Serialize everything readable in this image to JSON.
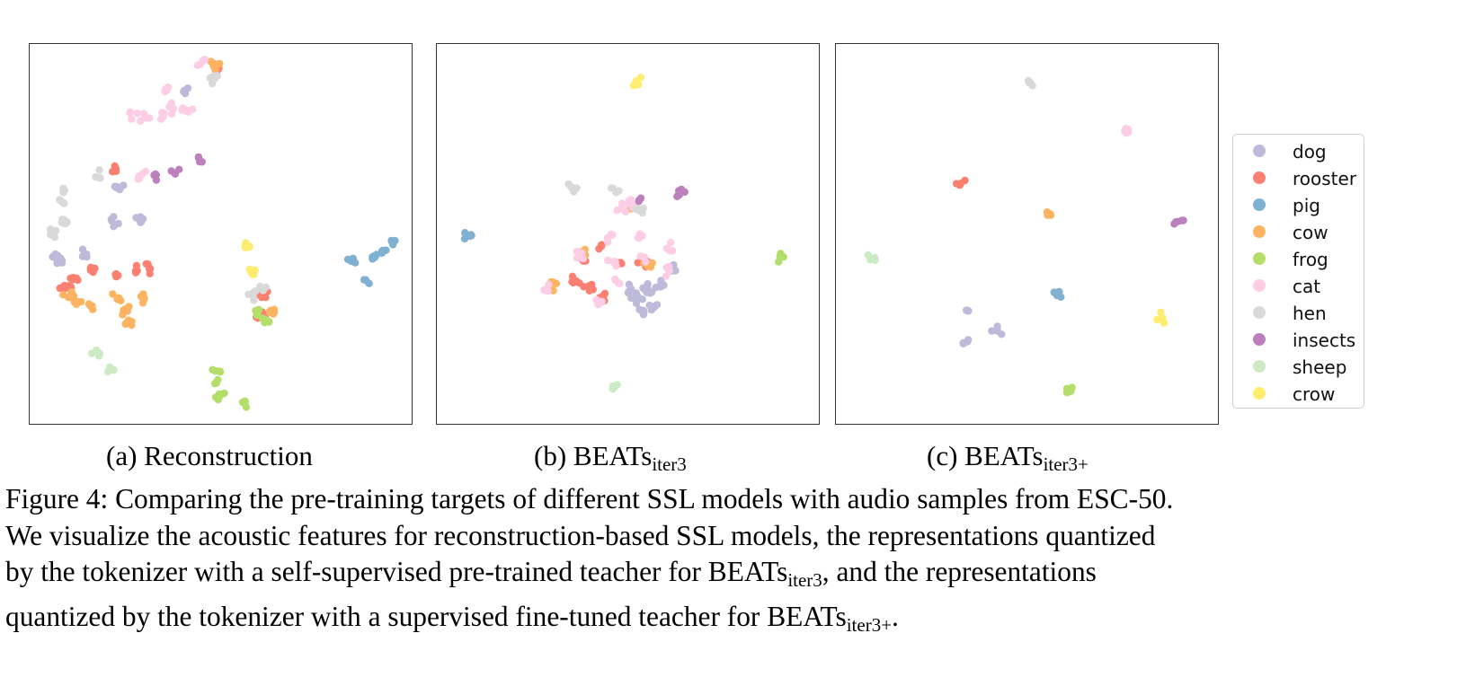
{
  "chart_data": [
    {
      "type": "scatter",
      "caption": {
        "prefix": "(a)",
        "title": "Reconstruction",
        "subscript": ""
      },
      "series": [
        {
          "name": "dog",
          "points": [
            [
              205,
              100
            ],
            [
              130,
              208
            ],
            [
              155,
              243
            ],
            [
              125,
              245
            ],
            [
              95,
              282
            ],
            [
              68,
              290
            ],
            [
              60,
              288
            ]
          ]
        },
        {
          "name": "rooster",
          "points": [
            [
              240,
              75
            ],
            [
              125,
              190
            ],
            [
              165,
              298
            ],
            [
              148,
              300
            ],
            [
              128,
              305
            ],
            [
              100,
              300
            ],
            [
              80,
              308
            ],
            [
              72,
              320
            ],
            [
              295,
              330
            ],
            [
              290,
              350
            ]
          ]
        },
        {
          "name": "pig",
          "points": [
            [
              435,
              268
            ],
            [
              425,
              280
            ],
            [
              415,
              285
            ],
            [
              392,
              290
            ],
            [
              406,
              311
            ]
          ]
        },
        {
          "name": "cow",
          "points": [
            [
              238,
              72
            ],
            [
              130,
              330
            ],
            [
              160,
              333
            ],
            [
              140,
              345
            ],
            [
              140,
              358
            ],
            [
              102,
              340
            ],
            [
              85,
              335
            ],
            [
              75,
              330
            ],
            [
              300,
              345
            ]
          ]
        },
        {
          "name": "frog",
          "points": [
            [
              242,
              412
            ],
            [
              240,
              425
            ],
            [
              245,
              440
            ],
            [
              272,
              447
            ],
            [
              295,
              357
            ],
            [
              285,
              350
            ]
          ]
        },
        {
          "name": "cat",
          "points": [
            [
              223,
              68
            ],
            [
              185,
              100
            ],
            [
              145,
              125
            ],
            [
              160,
              130
            ],
            [
              180,
              125
            ],
            [
              192,
              120
            ],
            [
              207,
              122
            ],
            [
              155,
              193
            ]
          ]
        },
        {
          "name": "hen",
          "points": [
            [
              238,
              88
            ],
            [
              108,
              195
            ],
            [
              70,
              210
            ],
            [
              70,
              225
            ],
            [
              58,
              258
            ],
            [
              70,
              250
            ],
            [
              288,
              320
            ],
            [
              280,
              328
            ]
          ]
        },
        {
          "name": "insects",
          "points": [
            [
              220,
              175
            ],
            [
              195,
              190
            ],
            [
              172,
              193
            ]
          ]
        },
        {
          "name": "sheep",
          "points": [
            [
              105,
              390
            ],
            [
              125,
              410
            ]
          ]
        },
        {
          "name": "crow",
          "points": [
            [
              272,
              275
            ],
            [
              280,
              303
            ]
          ]
        }
      ]
    },
    {
      "type": "scatter",
      "caption": {
        "prefix": "(b)",
        "title": "BEATs",
        "subscript": "iter3"
      },
      "series": [
        {
          "name": "dog",
          "points": [
            [
              720,
              320
            ],
            [
              735,
              318
            ],
            [
              745,
              300
            ],
            [
              725,
              340
            ],
            [
              715,
              345
            ],
            [
              708,
              330
            ],
            [
              700,
              322
            ]
          ]
        },
        {
          "name": "rooster",
          "points": [
            [
              640,
              312
            ],
            [
              655,
              318
            ],
            [
              668,
              330
            ],
            [
              685,
              295
            ],
            [
              715,
              290
            ],
            [
              668,
              272
            ],
            [
              648,
              290
            ]
          ]
        },
        {
          "name": "pig",
          "points": [
            [
              522,
              262
            ]
          ]
        },
        {
          "name": "cow",
          "points": [
            [
              612,
              318
            ],
            [
              650,
              282
            ],
            [
              720,
              295
            ],
            [
              700,
              225
            ]
          ]
        },
        {
          "name": "frog",
          "points": [
            [
              866,
              285
            ]
          ]
        },
        {
          "name": "cat",
          "points": [
            [
              675,
              265
            ],
            [
              710,
              265
            ],
            [
              745,
              272
            ],
            [
              645,
              282
            ],
            [
              682,
              290
            ],
            [
              715,
              285
            ],
            [
              740,
              302
            ],
            [
              685,
              315
            ],
            [
              663,
              333
            ],
            [
              608,
              322
            ],
            [
              700,
              228
            ],
            [
              690,
              232
            ]
          ]
        },
        {
          "name": "hen",
          "points": [
            [
              635,
              208
            ],
            [
              683,
              212
            ],
            [
              710,
              233
            ]
          ]
        },
        {
          "name": "insects",
          "points": [
            [
              755,
              212
            ],
            [
              710,
              222
            ]
          ]
        },
        {
          "name": "sheep",
          "points": [
            [
              682,
              428
            ]
          ]
        },
        {
          "name": "crow",
          "points": [
            [
              707,
              90
            ]
          ]
        }
      ]
    },
    {
      "type": "scatter",
      "caption": {
        "prefix": "(c)",
        "title": "BEATs",
        "subscript": "iter3+"
      },
      "series": [
        {
          "name": "dog",
          "points": [
            [
              1070,
              380
            ],
            [
              1108,
              367
            ],
            [
              1075,
              345
            ]
          ]
        },
        {
          "name": "rooster",
          "points": [
            [
              1068,
              202
            ]
          ]
        },
        {
          "name": "pig",
          "points": [
            [
              1175,
              328
            ]
          ]
        },
        {
          "name": "cow",
          "points": [
            [
              1165,
              238
            ]
          ]
        },
        {
          "name": "frog",
          "points": [
            [
              1188,
              435
            ]
          ]
        },
        {
          "name": "cat",
          "points": [
            [
              1252,
              145
            ]
          ]
        },
        {
          "name": "hen",
          "points": [
            [
              1145,
              92
            ]
          ]
        },
        {
          "name": "insects",
          "points": [
            [
              1310,
              245
            ]
          ]
        },
        {
          "name": "sheep",
          "points": [
            [
              970,
              285
            ]
          ]
        },
        {
          "name": "crow",
          "points": [
            [
              1292,
              352
            ]
          ]
        }
      ]
    }
  ],
  "legend": [
    {
      "label": "dog",
      "color": "#bebada"
    },
    {
      "label": "rooster",
      "color": "#fb8072"
    },
    {
      "label": "pig",
      "color": "#80b1d3"
    },
    {
      "label": "cow",
      "color": "#fdb462"
    },
    {
      "label": "frog",
      "color": "#b3de69"
    },
    {
      "label": "cat",
      "color": "#fccde5"
    },
    {
      "label": "hen",
      "color": "#d9d9d9"
    },
    {
      "label": "insects",
      "color": "#bc80bd"
    },
    {
      "label": "sheep",
      "color": "#ccebc5"
    },
    {
      "label": "crow",
      "color": "#ffed6f"
    }
  ],
  "figure_caption": {
    "line1": "Figure 4: Comparing the pre-training targets of different SSL models with audio samples from ESC-50.",
    "line2": "We visualize the acoustic features for reconstruction-based SSL models, the representations quantized",
    "line3_before": "by the tokenizer with a self-supervised pre-trained teacher for BEATs",
    "line3_sub": "iter3",
    "line3_after": ", and the representations",
    "line4_before": "quantized by the tokenizer with a supervised fine-tuned teacher for BEATs",
    "line4_sub": "iter3+",
    "line4_after": "."
  }
}
